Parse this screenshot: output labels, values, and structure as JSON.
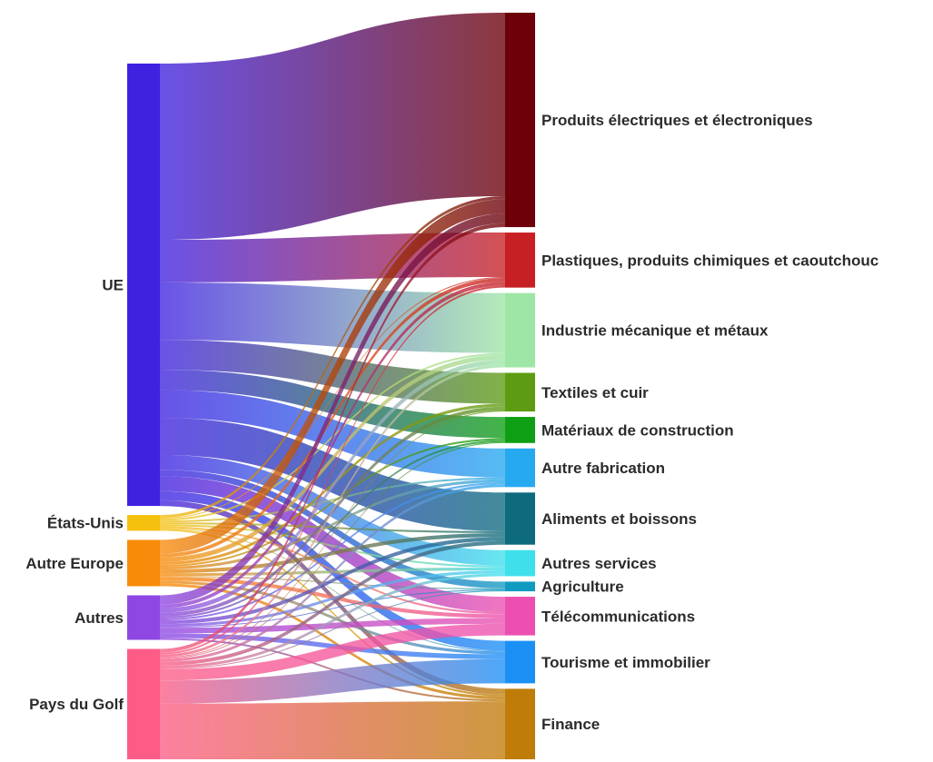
{
  "chart_data": {
    "type": "sankey",
    "sources": [
      {
        "id": "ue",
        "label": "UE",
        "color": "#3f22e0"
      },
      {
        "id": "us",
        "label": "États-Unis",
        "color": "#f6c00f"
      },
      {
        "id": "ae",
        "label": "Autre Europe",
        "color": "#f88b0a"
      },
      {
        "id": "au",
        "label": "Autres",
        "color": "#8e47e3"
      },
      {
        "id": "pg",
        "label": "Pays du Golf",
        "color": "#fc5c86"
      }
    ],
    "targets": [
      {
        "id": "pee",
        "label": "Produits électriques et électroniques",
        "color": "#6d0008"
      },
      {
        "id": "pcc",
        "label": "Plastiques, produits chimiques et caoutchouc",
        "color": "#c72024"
      },
      {
        "id": "imm",
        "label": "Industrie mécanique et métaux",
        "color": "#9ee6a6"
      },
      {
        "id": "tc",
        "label": "Textiles et cuir",
        "color": "#5d9c12"
      },
      {
        "id": "mc",
        "label": "Matériaux de construction",
        "color": "#0e9f14"
      },
      {
        "id": "af",
        "label": "Autre fabrication",
        "color": "#27a9f0"
      },
      {
        "id": "ab",
        "label": "Aliments et boissons",
        "color": "#0e6b7e"
      },
      {
        "id": "as",
        "label": "Autres services",
        "color": "#3fe0ec"
      },
      {
        "id": "ag",
        "label": "Agriculture",
        "color": "#119ac0"
      },
      {
        "id": "tel",
        "label": "Télécommunications",
        "color": "#ec4fb0"
      },
      {
        "id": "ti",
        "label": "Tourisme et immobilier",
        "color": "#1c8ff5"
      },
      {
        "id": "fi",
        "label": "Finance",
        "color": "#c07c08"
      }
    ],
    "links": [
      {
        "source": "ue",
        "target": "pee",
        "value": 190
      },
      {
        "source": "ue",
        "target": "pcc",
        "value": 46
      },
      {
        "source": "ue",
        "target": "imm",
        "value": 62
      },
      {
        "source": "ue",
        "target": "tc",
        "value": 32
      },
      {
        "source": "ue",
        "target": "mc",
        "value": 22
      },
      {
        "source": "ue",
        "target": "af",
        "value": 30
      },
      {
        "source": "ue",
        "target": "ab",
        "value": 40
      },
      {
        "source": "ue",
        "target": "as",
        "value": 16
      },
      {
        "source": "ue",
        "target": "ag",
        "value": 7
      },
      {
        "source": "ue",
        "target": "tel",
        "value": 16
      },
      {
        "source": "ue",
        "target": "ti",
        "value": 10
      },
      {
        "source": "ue",
        "target": "fi",
        "value": 6
      },
      {
        "source": "us",
        "target": "pee",
        "value": 3
      },
      {
        "source": "us",
        "target": "pcc",
        "value": 1
      },
      {
        "source": "us",
        "target": "imm",
        "value": 2
      },
      {
        "source": "us",
        "target": "af",
        "value": 2
      },
      {
        "source": "us",
        "target": "ab",
        "value": 2
      },
      {
        "source": "us",
        "target": "as",
        "value": 2
      },
      {
        "source": "us",
        "target": "tel",
        "value": 2
      },
      {
        "source": "us",
        "target": "ti",
        "value": 1
      },
      {
        "source": "us",
        "target": "fi",
        "value": 2
      },
      {
        "source": "ae",
        "target": "pee",
        "value": 15
      },
      {
        "source": "ae",
        "target": "pcc",
        "value": 4
      },
      {
        "source": "ae",
        "target": "imm",
        "value": 5
      },
      {
        "source": "ae",
        "target": "tc",
        "value": 3
      },
      {
        "source": "ae",
        "target": "mc",
        "value": 2
      },
      {
        "source": "ae",
        "target": "af",
        "value": 3
      },
      {
        "source": "ae",
        "target": "ab",
        "value": 4
      },
      {
        "source": "ae",
        "target": "as",
        "value": 3
      },
      {
        "source": "ae",
        "target": "ag",
        "value": 1
      },
      {
        "source": "ae",
        "target": "tel",
        "value": 4
      },
      {
        "source": "ae",
        "target": "ti",
        "value": 3
      },
      {
        "source": "ae",
        "target": "fi",
        "value": 3
      },
      {
        "source": "au",
        "target": "pee",
        "value": 10
      },
      {
        "source": "au",
        "target": "pcc",
        "value": 4
      },
      {
        "source": "au",
        "target": "imm",
        "value": 5
      },
      {
        "source": "au",
        "target": "tc",
        "value": 4
      },
      {
        "source": "au",
        "target": "mc",
        "value": 2
      },
      {
        "source": "au",
        "target": "af",
        "value": 2
      },
      {
        "source": "au",
        "target": "ab",
        "value": 4
      },
      {
        "source": "au",
        "target": "as",
        "value": 3
      },
      {
        "source": "au",
        "target": "ag",
        "value": 1
      },
      {
        "source": "au",
        "target": "tel",
        "value": 6
      },
      {
        "source": "au",
        "target": "ti",
        "value": 5
      },
      {
        "source": "au",
        "target": "fi",
        "value": 2
      },
      {
        "source": "pg",
        "target": "pee",
        "value": 4
      },
      {
        "source": "pg",
        "target": "pcc",
        "value": 2
      },
      {
        "source": "pg",
        "target": "imm",
        "value": 3
      },
      {
        "source": "pg",
        "target": "tc",
        "value": 1
      },
      {
        "source": "pg",
        "target": "mc",
        "value": 1
      },
      {
        "source": "pg",
        "target": "af",
        "value": 3
      },
      {
        "source": "pg",
        "target": "ab",
        "value": 4
      },
      {
        "source": "pg",
        "target": "as",
        "value": 3
      },
      {
        "source": "pg",
        "target": "ag",
        "value": 1
      },
      {
        "source": "pg",
        "target": "tel",
        "value": 12
      },
      {
        "source": "pg",
        "target": "ti",
        "value": 25
      },
      {
        "source": "pg",
        "target": "fi",
        "value": 60
      }
    ]
  }
}
